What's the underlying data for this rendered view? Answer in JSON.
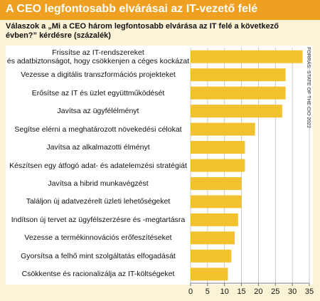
{
  "chart_data": {
    "type": "hbar",
    "title": "A CEO legfontosabb elvárásai az IT-vezető felé",
    "subtitle": "Válaszok a „Mi a CEO három legfontosabb elvárása az IT felé a következő évben?” kérdésre (százalék)",
    "source": "FORRÁS: STATE OF THE CIO 2022",
    "categories": [
      "Frissítse az IT-rendszereket\nés adatbiztonságot, hogy csökkenjen a céges kockázat",
      "Vezesse a digitális transzformációs projekteket",
      "Erősítse az IT és üzlet együttműködését",
      "Javítsa az ügyfélélményt",
      "Segítse elérni a meghatározott növekedési célokat",
      "Javítsa az alkalmazotti élményt",
      "Készítsen egy átfogó adat- és adatelemzési stratégiát",
      "Javítsa a hibrid munkavégzést",
      "Találjon új adatvezérelt üzleti lehetőségeket",
      "Indítson új tervet az ügyfélszerzésre és -megtartásra",
      "Vezesse a termékinnovációs erőfeszítéseket",
      "Gyorsítsa a felhő mint szolgáltatás elfogadását",
      "Csökkentse és racionalizálja az IT-költségeket"
    ],
    "values": [
      33,
      28,
      28,
      27,
      19,
      16,
      16,
      15,
      15,
      14,
      13,
      12,
      11
    ],
    "color": "#f2c12e",
    "xlim": [
      0,
      35
    ],
    "xticks": [
      0,
      5,
      10,
      15,
      20,
      25,
      30,
      35
    ],
    "grid": true
  }
}
